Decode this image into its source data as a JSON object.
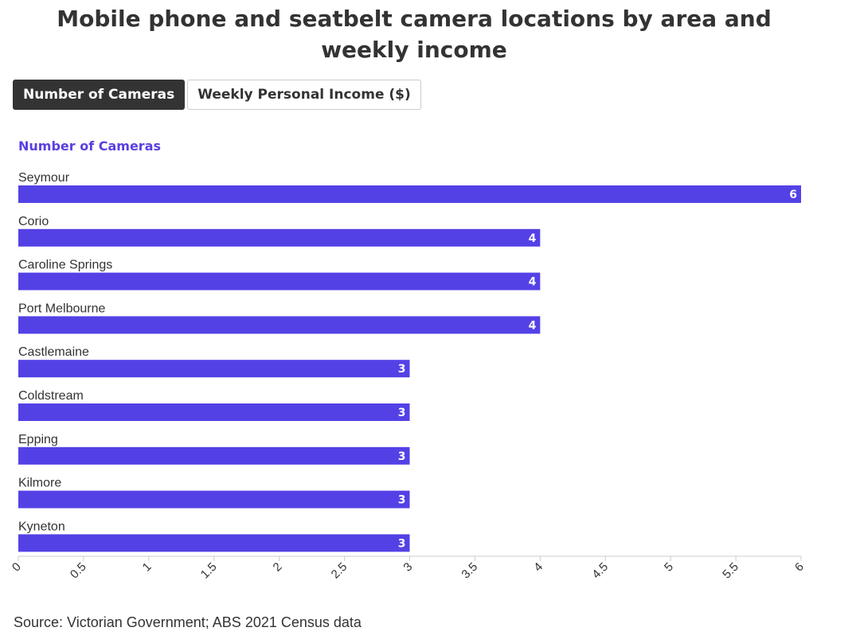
{
  "title": "Mobile phone and seatbelt camera locations by area and weekly income",
  "tabs": [
    {
      "label": "Number of Cameras",
      "active": true
    },
    {
      "label": "Weekly Personal Income ($)",
      "active": false
    }
  ],
  "source": "Source: Victorian Government; ABS 2021 Census data",
  "colors": {
    "bar": "#5341e6",
    "heading": "#5a3fe0",
    "text": "#333333"
  },
  "chart_data": {
    "type": "bar",
    "orientation": "horizontal",
    "series": [
      {
        "name": "Number of Cameras",
        "values": [
          6,
          4,
          4,
          4,
          3,
          3,
          3,
          3,
          3
        ]
      }
    ],
    "categories": [
      "Seymour",
      "Corio",
      "Caroline Springs",
      "Port Melbourne",
      "Castlemaine",
      "Coldstream",
      "Epping",
      "Kilmore",
      "Kyneton"
    ],
    "xlim": [
      0,
      6
    ],
    "xticks": [
      "0",
      "0.5",
      "1",
      "1.5",
      "2",
      "2.5",
      "3",
      "3.5",
      "4",
      "4.5",
      "5",
      "5.5",
      "6"
    ],
    "xtick_values": [
      0,
      0.5,
      1,
      1.5,
      2,
      2.5,
      3,
      3.5,
      4,
      4.5,
      5,
      5.5,
      6
    ],
    "data_labels": [
      "6",
      "4",
      "4",
      "4",
      "3",
      "3",
      "3",
      "3",
      "3"
    ],
    "grid": false,
    "legend": "none"
  }
}
